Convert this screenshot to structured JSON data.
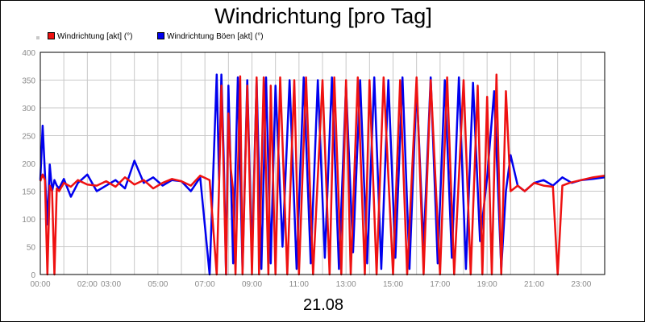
{
  "title": "Windrichtung [pro Tag]",
  "date_label": "21.08",
  "legend": [
    {
      "label": "Windrichtung [akt] (°)",
      "color": "#ee1111"
    },
    {
      "label": "Windrichtung Böen [akt] (°)",
      "color": "#0000ee"
    }
  ],
  "chart_data": {
    "type": "line",
    "title": "Windrichtung [pro Tag]",
    "xlabel": "21.08",
    "ylabel": "",
    "x_unit": "hour of day",
    "xlim": [
      0,
      24
    ],
    "ylim": [
      0,
      400
    ],
    "x_tick_labels": [
      "00:00",
      "02:00",
      "03:00",
      "05:00",
      "07:00",
      "09:00",
      "11:00",
      "13:00",
      "15:00",
      "17:00",
      "19:00",
      "21:00",
      "23:00"
    ],
    "y_tick_labels": [
      "0",
      "50",
      "100",
      "150",
      "200",
      "250",
      "300",
      "350",
      "400"
    ],
    "grid": true,
    "legend_position": "top-left",
    "series": [
      {
        "name": "Windrichtung [akt] (°)",
        "color": "#ee1111",
        "x": [
          0,
          0.1,
          0.2,
          0.3,
          0.4,
          0.5,
          0.6,
          0.7,
          0.8,
          1,
          1.3,
          1.6,
          2,
          2.4,
          2.8,
          3.2,
          3.6,
          4,
          4.4,
          4.8,
          5.2,
          5.6,
          6,
          6.4,
          6.8,
          7.2,
          7.5,
          7.6,
          7.7,
          7.8,
          7.9,
          8,
          8.1,
          8.2,
          8.3,
          8.5,
          8.6,
          8.8,
          9,
          9.2,
          9.3,
          9.5,
          9.7,
          9.8,
          10,
          10.2,
          10.5,
          10.8,
          11,
          11.3,
          11.6,
          12,
          12.3,
          12.5,
          12.8,
          13,
          13.2,
          13.5,
          13.8,
          14,
          14.3,
          14.6,
          15,
          15.3,
          15.6,
          16,
          16.3,
          16.6,
          17,
          17.3,
          17.6,
          18,
          18.3,
          18.6,
          18.8,
          19,
          19.2,
          19.4,
          19.6,
          19.8,
          20,
          20.3,
          20.6,
          21,
          21.4,
          21.8,
          22,
          22.2,
          22.5,
          23,
          23.5,
          24
        ],
        "values": [
          168,
          180,
          170,
          0,
          160,
          150,
          0,
          155,
          150,
          165,
          158,
          170,
          162,
          160,
          168,
          158,
          175,
          162,
          170,
          155,
          165,
          172,
          168,
          160,
          178,
          170,
          0,
          160,
          340,
          180,
          0,
          290,
          190,
          150,
          0,
          357,
          0,
          340,
          0,
          355,
          0,
          355,
          0,
          340,
          0,
          355,
          0,
          350,
          0,
          355,
          0,
          350,
          0,
          355,
          0,
          350,
          0,
          355,
          0,
          350,
          0,
          355,
          0,
          350,
          0,
          355,
          0,
          350,
          0,
          355,
          0,
          350,
          0,
          340,
          0,
          320,
          0,
          360,
          0,
          330,
          150,
          160,
          150,
          165,
          160,
          158,
          0,
          160,
          165,
          170,
          175,
          178
        ]
      },
      {
        "name": "Windrichtung Böen [akt] (°)",
        "color": "#0000ee",
        "x": [
          0,
          0.1,
          0.2,
          0.3,
          0.4,
          0.5,
          0.6,
          0.7,
          0.8,
          1,
          1.3,
          1.6,
          2,
          2.4,
          2.8,
          3.2,
          3.6,
          4,
          4.4,
          4.8,
          5.2,
          5.6,
          6,
          6.4,
          6.8,
          7.2,
          7.5,
          7.6,
          7.7,
          7.8,
          7.9,
          8,
          8.2,
          8.4,
          8.6,
          8.8,
          9,
          9.2,
          9.4,
          9.6,
          9.8,
          10,
          10.3,
          10.6,
          10.9,
          11.2,
          11.5,
          11.8,
          12.1,
          12.4,
          12.7,
          13,
          13.3,
          13.6,
          13.9,
          14.2,
          14.5,
          14.8,
          15.1,
          15.4,
          15.7,
          16,
          16.3,
          16.6,
          16.9,
          17.2,
          17.5,
          17.8,
          18.1,
          18.4,
          18.7,
          19,
          19.3,
          19.6,
          19.8,
          20,
          20.3,
          20.6,
          21,
          21.4,
          21.8,
          22.2,
          22.6,
          23,
          23.5,
          24
        ],
        "values": [
          170,
          268,
          180,
          90,
          198,
          150,
          170,
          160,
          155,
          172,
          140,
          165,
          180,
          150,
          160,
          170,
          155,
          205,
          165,
          175,
          160,
          170,
          168,
          150,
          175,
          0,
          360,
          170,
          360,
          210,
          0,
          340,
          20,
          355,
          10,
          350,
          30,
          350,
          10,
          355,
          20,
          340,
          50,
          350,
          10,
          355,
          20,
          350,
          30,
          355,
          10,
          340,
          40,
          350,
          20,
          355,
          10,
          350,
          30,
          355,
          10,
          340,
          50,
          355,
          20,
          350,
          30,
          355,
          10,
          345,
          60,
          175,
          330,
          10,
          150,
          215,
          160,
          150,
          165,
          170,
          160,
          175,
          165,
          170,
          172,
          175
        ]
      }
    ]
  }
}
